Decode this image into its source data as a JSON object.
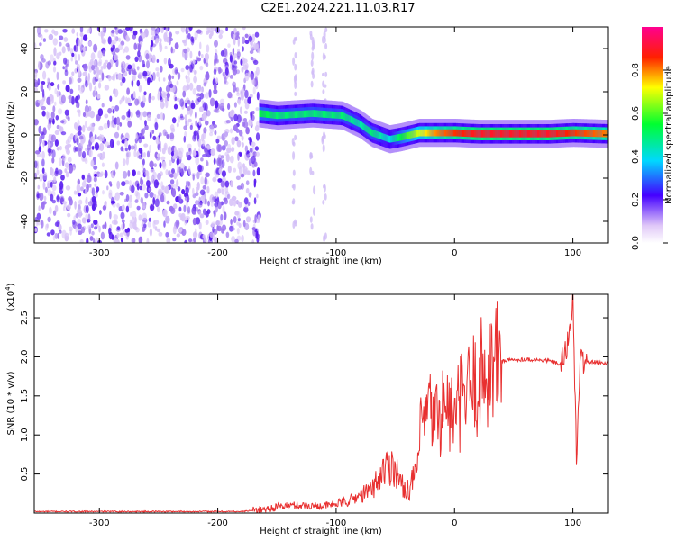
{
  "title": "C2E1.2024.221.11.03.R17",
  "chart_data": [
    {
      "type": "heatmap",
      "xlabel": "Height of straight line (km)",
      "ylabel": "Frequency (Hz)",
      "xlim": [
        -355,
        130
      ],
      "ylim": [
        -50,
        50
      ],
      "x_ticks": [
        "-300",
        "-200",
        "-100",
        "0",
        "100"
      ],
      "y_ticks": [
        "-40",
        "-20",
        "0",
        "20",
        "40"
      ],
      "colorbar": {
        "label": "Normalized spectral amplitude",
        "range": [
          0.0,
          1.0
        ],
        "ticks": [
          "0.0",
          "0.2",
          "0.4",
          "0.6",
          "0.8"
        ]
      },
      "ridge": {
        "x": [
          -165,
          -150,
          -120,
          -95,
          -80,
          -70,
          -55,
          -45,
          -30,
          -15,
          0,
          20,
          50,
          80,
          100,
          130
        ],
        "frequency": [
          10,
          9,
          10,
          9,
          5,
          1,
          -2,
          -1,
          1,
          1,
          1,
          0.5,
          0.5,
          0.5,
          1,
          0.5
        ],
        "amplitude": [
          0.55,
          0.5,
          0.5,
          0.5,
          0.45,
          0.5,
          0.4,
          0.55,
          0.7,
          0.8,
          0.85,
          0.9,
          0.9,
          0.9,
          0.85,
          0.8
        ]
      },
      "noise_region_x": [
        -355,
        -165
      ]
    },
    {
      "type": "line",
      "xlabel": "Height of straight line (km)",
      "ylabel": "SNR (10 * v/v)",
      "y_multiplier": "(x10",
      "y_exponent": "4",
      "xlim": [
        -355,
        130
      ],
      "ylim": [
        0,
        28000
      ],
      "x_ticks": [
        "-300",
        "-200",
        "-100",
        "0",
        "100"
      ],
      "y_ticks": [
        "0.5",
        "1.0",
        "1.5",
        "2.0",
        "2.5"
      ],
      "color": "#e83030",
      "x": [
        -355,
        -260,
        -180,
        -165,
        -140,
        -110,
        -90,
        -70,
        -60,
        -52,
        -45,
        -38,
        -32,
        -28,
        -22,
        -18,
        -14,
        -8,
        0,
        6,
        12,
        20,
        30,
        40,
        60,
        80,
        90,
        95,
        100,
        103,
        106,
        110,
        130
      ],
      "y": [
        200,
        200,
        200,
        400,
        1000,
        900,
        1500,
        3000,
        5500,
        6500,
        3500,
        3000,
        5500,
        11000,
        13000,
        12500,
        12000,
        14000,
        12000,
        14500,
        15500,
        17000,
        19000,
        19500,
        19700,
        19500,
        19000,
        21000,
        27500,
        6500,
        19500,
        19400,
        19200
      ]
    }
  ]
}
